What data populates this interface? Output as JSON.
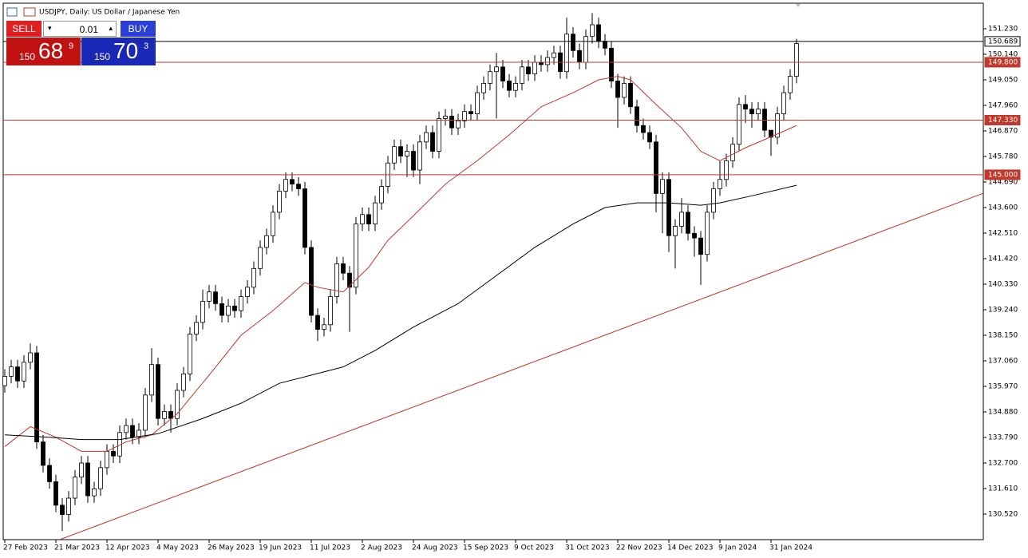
{
  "trade_panel": {
    "sell": "SELL",
    "buy": "BUY",
    "volume": "0.01",
    "bid": [
      "150",
      "68",
      "9"
    ],
    "ask": [
      "150",
      "70",
      "3"
    ]
  },
  "chart_data": {
    "type": "candlestick",
    "title": "USDJPY, Daily:  US Dollar / Japanese Yen",
    "up_color": "#ffffff",
    "down_color": "#000000",
    "border_color": "#000000",
    "xlim": [
      -0.25,
      153.25
    ],
    "ylim": [
      129.43,
      152.32
    ],
    "xticks": [
      {
        "value": 0,
        "label": "27 Feb 2023"
      },
      {
        "value": 8,
        "label": "21 Mar 2023"
      },
      {
        "value": 16,
        "label": "12 Apr 2023"
      },
      {
        "value": 24,
        "label": "4 May 2023"
      },
      {
        "value": 32,
        "label": "26 May 2023"
      },
      {
        "value": 40,
        "label": "19 Jun 2023"
      },
      {
        "value": 48,
        "label": "11 Jul 2023"
      },
      {
        "value": 56,
        "label": "2 Aug 2023"
      },
      {
        "value": 64,
        "label": "24 Aug 2023"
      },
      {
        "value": 72,
        "label": "15 Sep 2023"
      },
      {
        "value": 80,
        "label": "9 Oct 2023"
      },
      {
        "value": 88,
        "label": "31 Oct 2023"
      },
      {
        "value": 96,
        "label": "22 Nov 2023"
      },
      {
        "value": 104,
        "label": "14 Dec 2023"
      },
      {
        "value": 112,
        "label": "9 Jan 2024"
      },
      {
        "value": 120,
        "label": "31 Jan 2024"
      }
    ],
    "yticks": [
      {
        "value": 151.23,
        "label": "151.230"
      },
      {
        "value": 150.14,
        "label": "150.140"
      },
      {
        "value": 149.05,
        "label": "149.050"
      },
      {
        "value": 147.96,
        "label": "147.960"
      },
      {
        "value": 146.87,
        "label": "146.870"
      },
      {
        "value": 145.78,
        "label": "145.780"
      },
      {
        "value": 144.69,
        "label": "144.690"
      },
      {
        "value": 143.6,
        "label": "143.600"
      },
      {
        "value": 142.51,
        "label": "142.510"
      },
      {
        "value": 141.42,
        "label": "141.420"
      },
      {
        "value": 140.33,
        "label": "140.330"
      },
      {
        "value": 139.24,
        "label": "139.240"
      },
      {
        "value": 138.15,
        "label": "138.150"
      },
      {
        "value": 137.06,
        "label": "137.060"
      },
      {
        "value": 135.97,
        "label": "135.970"
      },
      {
        "value": 134.88,
        "label": "134.880"
      },
      {
        "value": 133.79,
        "label": "133.790"
      },
      {
        "value": 132.7,
        "label": "132.700"
      },
      {
        "value": 131.61,
        "label": "131.610"
      },
      {
        "value": 130.52,
        "label": "130.520"
      }
    ],
    "open": [
      136.0,
      136.4,
      136.8,
      136.2,
      137.0,
      137.4,
      133.6,
      132.6,
      131.9,
      130.9,
      130.5,
      131.2,
      132.1,
      132.7,
      131.3,
      131.6,
      132.5,
      133.2,
      133.0,
      134.0,
      134.3,
      133.8,
      134.1,
      135.6,
      136.9,
      134.6,
      134.9,
      134.6,
      135.8,
      136.5,
      138.2,
      138.7,
      139.6,
      140.0,
      139.5,
      139.0,
      139.4,
      139.2,
      139.8,
      140.2,
      141.0,
      141.9,
      142.4,
      143.4,
      144.3,
      144.8,
      144.6,
      144.4,
      141.9,
      139.0,
      138.4,
      138.6,
      139.8,
      141.2,
      140.8,
      140.2,
      142.9,
      143.3,
      142.9,
      143.8,
      144.5,
      145.5,
      146.2,
      145.8,
      146.0,
      145.2,
      146.4,
      146.8,
      146.0,
      147.4,
      147.5,
      147.0,
      147.3,
      147.7,
      147.6,
      148.5,
      148.9,
      149.4,
      149.6,
      149.0,
      148.6,
      148.9,
      149.6,
      149.3,
      149.8,
      149.7,
      150.0,
      150.2,
      149.4,
      151.0,
      150.3,
      149.8,
      150.9,
      151.4,
      150.7,
      150.4,
      149.0,
      148.3,
      148.9,
      147.9,
      147.1,
      146.8,
      146.4,
      144.2,
      144.8,
      142.4,
      142.8,
      143.4,
      142.5,
      142.3,
      141.6,
      143.4,
      144.4,
      144.8,
      145.6,
      146.3,
      148.0,
      147.8,
      147.6,
      147.8,
      146.9,
      146.6,
      147.6,
      148.5,
      149.2
    ],
    "high": [
      136.7,
      137.1,
      137.1,
      137.3,
      137.8,
      137.7,
      133.9,
      132.9,
      132.2,
      131.2,
      131.5,
      132.4,
      133.0,
      133.0,
      131.9,
      132.8,
      133.5,
      133.5,
      134.3,
      134.6,
      134.6,
      134.4,
      135.9,
      137.6,
      137.2,
      135.2,
      135.2,
      136.1,
      136.8,
      138.5,
      139.0,
      140.1,
      140.3,
      140.3,
      139.8,
      139.7,
      139.7,
      140.1,
      140.5,
      141.3,
      142.2,
      142.7,
      143.7,
      144.6,
      145.1,
      145.1,
      144.9,
      144.7,
      142.2,
      139.3,
      138.9,
      140.1,
      141.5,
      141.5,
      141.1,
      143.2,
      143.6,
      143.6,
      144.1,
      144.8,
      145.8,
      146.5,
      146.5,
      146.3,
      146.3,
      146.7,
      147.1,
      147.1,
      147.7,
      147.8,
      147.8,
      147.6,
      148.0,
      148.0,
      148.8,
      149.2,
      149.7,
      150.2,
      149.9,
      149.3,
      149.2,
      149.9,
      149.9,
      150.1,
      150.1,
      150.3,
      150.5,
      150.5,
      151.7,
      151.3,
      150.6,
      151.2,
      151.9,
      151.7,
      151.0,
      150.7,
      149.3,
      149.2,
      149.2,
      148.2,
      147.4,
      147.1,
      146.7,
      145.1,
      145.1,
      143.1,
      144.0,
      143.7,
      142.8,
      142.6,
      143.7,
      144.7,
      145.6,
      145.9,
      146.6,
      148.3,
      148.4,
      148.1,
      148.1,
      148.1,
      146.9,
      147.9,
      148.8,
      149.5,
      150.8
    ],
    "low": [
      135.7,
      136.1,
      135.9,
      135.9,
      136.7,
      133.3,
      132.3,
      131.6,
      130.6,
      129.8,
      130.2,
      130.9,
      131.8,
      131.0,
      131.0,
      131.3,
      132.2,
      132.7,
      132.7,
      133.7,
      133.5,
      133.5,
      133.8,
      135.3,
      134.3,
      134.3,
      134.0,
      134.3,
      135.5,
      136.2,
      137.9,
      138.4,
      139.3,
      139.2,
      138.7,
      138.7,
      138.9,
      138.9,
      139.5,
      139.9,
      140.7,
      141.6,
      142.1,
      143.1,
      144.0,
      144.3,
      144.1,
      141.6,
      138.7,
      137.9,
      138.1,
      138.3,
      139.5,
      140.5,
      138.3,
      139.9,
      142.6,
      142.6,
      142.6,
      143.5,
      144.2,
      145.2,
      145.5,
      144.9,
      144.9,
      144.6,
      146.1,
      145.7,
      145.7,
      147.1,
      146.7,
      146.7,
      147.0,
      147.3,
      147.3,
      148.2,
      148.6,
      147.4,
      148.7,
      148.3,
      148.3,
      148.6,
      149.0,
      149.0,
      149.4,
      149.4,
      149.7,
      149.1,
      149.1,
      150.0,
      149.5,
      149.5,
      150.6,
      150.4,
      150.1,
      148.7,
      147.0,
      148.0,
      147.6,
      146.8,
      146.5,
      146.1,
      143.4,
      142.5,
      141.7,
      141.0,
      142.5,
      142.2,
      141.5,
      140.3,
      141.3,
      143.1,
      144.1,
      144.5,
      145.3,
      146.0,
      147.2,
      147.0,
      147.3,
      146.6,
      145.8,
      146.3,
      147.3,
      148.2,
      148.9
    ],
    "close": [
      136.4,
      136.8,
      136.2,
      137.0,
      137.4,
      133.6,
      132.6,
      131.9,
      130.9,
      130.5,
      131.2,
      132.1,
      132.7,
      131.3,
      131.6,
      132.5,
      133.2,
      133.0,
      134.0,
      134.3,
      133.8,
      134.1,
      135.6,
      136.9,
      134.6,
      134.9,
      134.6,
      135.8,
      136.5,
      138.2,
      138.7,
      139.6,
      140.0,
      139.5,
      139.0,
      139.4,
      139.2,
      139.8,
      140.2,
      141.0,
      141.9,
      142.4,
      143.4,
      144.3,
      144.8,
      144.6,
      144.4,
      141.9,
      139.0,
      138.4,
      138.6,
      139.8,
      141.2,
      140.8,
      140.2,
      142.9,
      143.3,
      142.9,
      143.8,
      144.5,
      145.5,
      146.2,
      145.8,
      146.0,
      145.2,
      146.4,
      146.8,
      146.0,
      147.4,
      147.5,
      147.0,
      147.3,
      147.7,
      147.6,
      148.5,
      148.9,
      149.4,
      149.6,
      149.0,
      148.6,
      148.9,
      149.6,
      149.3,
      149.8,
      149.7,
      150.0,
      150.2,
      149.4,
      151.0,
      150.3,
      149.8,
      150.9,
      151.4,
      150.7,
      150.4,
      149.0,
      148.3,
      148.9,
      147.9,
      147.1,
      146.8,
      146.4,
      144.2,
      144.8,
      142.4,
      142.8,
      143.4,
      142.5,
      142.3,
      141.6,
      143.4,
      144.4,
      144.8,
      145.6,
      146.3,
      148.0,
      147.8,
      147.6,
      147.8,
      146.9,
      146.6,
      147.6,
      148.5,
      149.2,
      150.6
    ],
    "lines": [
      {
        "color": "#c0392b",
        "x": [
          0,
          4,
          8,
          12,
          16,
          19,
          23,
          27,
          32,
          37,
          42,
          47,
          49,
          53,
          57,
          60,
          64,
          69,
          74,
          79,
          84,
          89,
          93,
          96,
          98,
          102,
          106,
          109,
          112,
          116,
          119,
          124
        ],
        "values": [
          133.4,
          134.25,
          133.8,
          133.2,
          133.2,
          133.6,
          133.9,
          134.8,
          136.45,
          138.15,
          139.2,
          140.4,
          140.2,
          140.0,
          141.05,
          142.2,
          143.25,
          144.6,
          145.6,
          146.7,
          147.9,
          148.5,
          149.05,
          149.2,
          149.05,
          148.0,
          147.0,
          146.0,
          145.6,
          146.15,
          146.5,
          147.1
        ]
      },
      {
        "color": "#000000",
        "x": [
          0,
          7,
          12,
          18,
          24,
          31,
          37,
          43,
          48,
          53,
          58,
          64,
          71,
          77,
          83,
          89,
          94,
          99,
          104,
          109,
          112,
          117,
          124
        ],
        "values": [
          133.9,
          133.8,
          133.7,
          133.7,
          133.95,
          134.6,
          135.25,
          136.1,
          136.45,
          136.8,
          137.5,
          138.5,
          139.5,
          140.7,
          141.9,
          142.9,
          143.6,
          143.8,
          143.8,
          143.7,
          143.8,
          144.1,
          144.55
        ]
      },
      {
        "color": "#c0392b",
        "x": [
          8.6,
          153.25
        ],
        "values": [
          129.43,
          144.21
        ]
      }
    ],
    "hlines": [
      {
        "value": 150.689,
        "label": "150.689",
        "color": "#000000"
      },
      {
        "value": 149.8,
        "label": "149.800",
        "color": "#c0392b"
      },
      {
        "value": 147.33,
        "label": "147.330",
        "color": "#c0392b"
      },
      {
        "value": 145.0,
        "label": "145.000",
        "color": "#c0392b"
      }
    ]
  }
}
